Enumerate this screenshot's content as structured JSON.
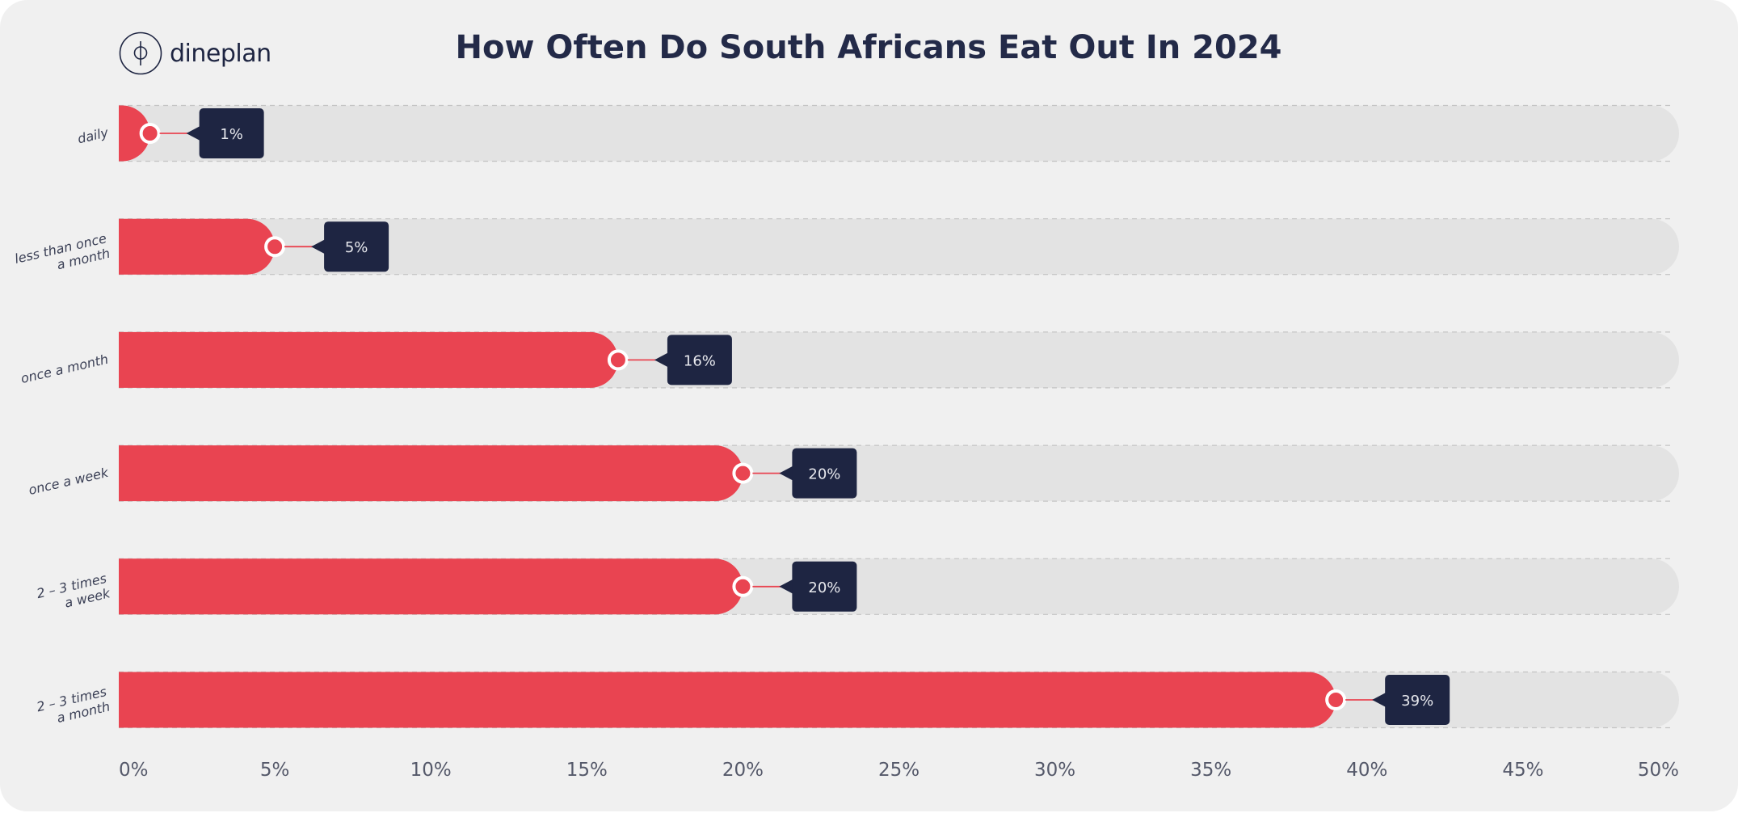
{
  "brand": {
    "logo_text": "dineplan",
    "logo_icon": "dp-monogram-icon"
  },
  "colors": {
    "background": "#f0f0f0",
    "track": "#e3e3e3",
    "bar": "#e94451",
    "callout": "#1e2542",
    "title": "#232a48"
  },
  "chart_data": {
    "type": "bar",
    "orientation": "horizontal",
    "title": "How Often Do South Africans Eat Out In 2024",
    "categories": [
      [
        "daily"
      ],
      [
        "less than once",
        "a month"
      ],
      [
        "once a month"
      ],
      [
        "once a week"
      ],
      [
        "2 – 3 times",
        "a week"
      ],
      [
        "2 – 3 times",
        "a month"
      ]
    ],
    "values": [
      1,
      5,
      16,
      20,
      20,
      39
    ],
    "value_labels": [
      "1%",
      "5%",
      "16%",
      "20%",
      "20%",
      "39%"
    ],
    "xlim": [
      0,
      50
    ],
    "xticks": [
      0,
      5,
      10,
      15,
      20,
      25,
      30,
      35,
      40,
      45,
      50
    ],
    "xtick_labels": [
      "0%",
      "5%",
      "10%",
      "15%",
      "20%",
      "25%",
      "30%",
      "35%",
      "40%",
      "45%",
      "50%"
    ],
    "grid": false,
    "legend": "none"
  }
}
